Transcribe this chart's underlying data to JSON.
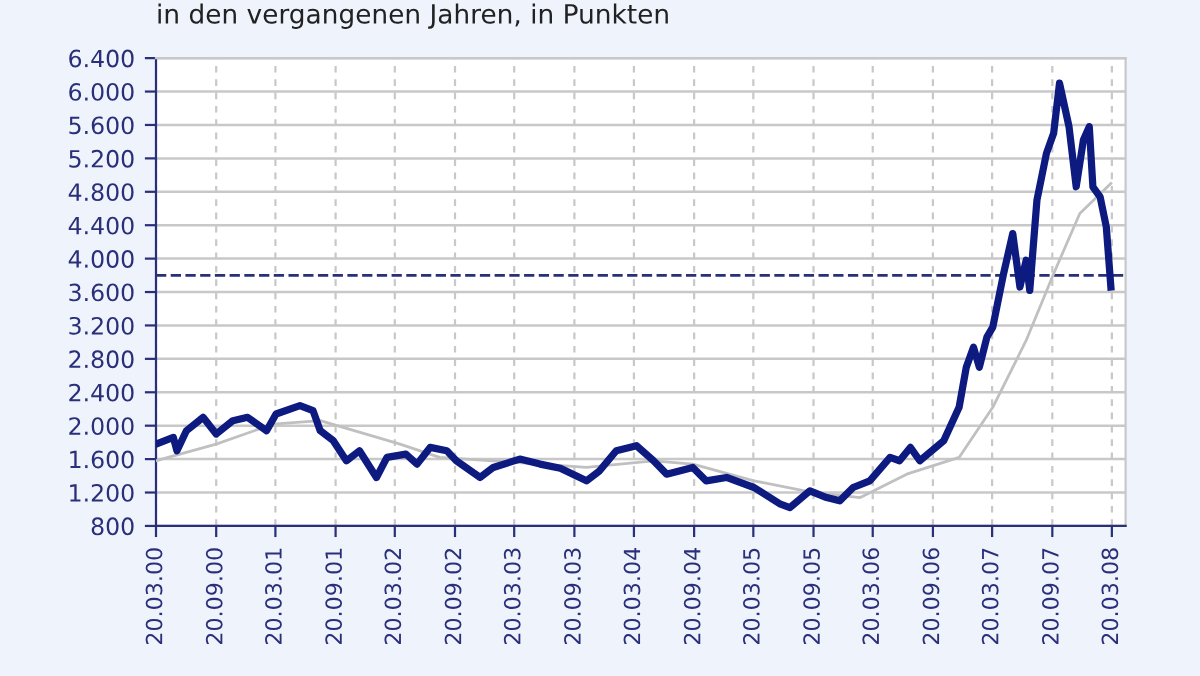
{
  "chart_data": {
    "type": "line",
    "subtitle": "in den vergangenen Jahren, in Punkten",
    "xlim": [
      "2000-03-20",
      "2008-05-01"
    ],
    "xticks": [
      {
        "value": "2000-03-20",
        "label": "20.03.00"
      },
      {
        "value": "2000-09-20",
        "label": "20.09.00"
      },
      {
        "value": "2001-03-20",
        "label": "20.03.01"
      },
      {
        "value": "2001-09-20",
        "label": "20.09.01"
      },
      {
        "value": "2002-03-20",
        "label": "20.03.02"
      },
      {
        "value": "2002-09-20",
        "label": "20.09.02"
      },
      {
        "value": "2003-03-20",
        "label": "20.03.03"
      },
      {
        "value": "2003-09-20",
        "label": "20.09.03"
      },
      {
        "value": "2004-03-20",
        "label": "20.03.04"
      },
      {
        "value": "2004-09-20",
        "label": "20.09.04"
      },
      {
        "value": "2005-03-20",
        "label": "20.03.05"
      },
      {
        "value": "2005-09-20",
        "label": "20.09.05"
      },
      {
        "value": "2006-03-20",
        "label": "20.03.06"
      },
      {
        "value": "2006-09-20",
        "label": "20.09.06"
      },
      {
        "value": "2007-03-20",
        "label": "20.03.07"
      },
      {
        "value": "2007-09-20",
        "label": "20.09.07"
      },
      {
        "value": "2008-03-20",
        "label": "20.03.08"
      }
    ],
    "ylim": [
      800,
      6400
    ],
    "yticks": [
      800,
      {
        "value": 1200,
        "label": "1.200"
      },
      {
        "value": 1600,
        "label": "1.600"
      },
      {
        "value": 2000,
        "label": "2.000"
      },
      {
        "value": 2400,
        "label": "2.400"
      },
      {
        "value": 2800,
        "label": "2.800"
      },
      {
        "value": 3200,
        "label": "3.200"
      },
      {
        "value": 3600,
        "label": "3.600"
      },
      {
        "value": 4000,
        "label": "4.000"
      },
      {
        "value": 4400,
        "label": "4.400"
      },
      {
        "value": 4800,
        "label": "4.800"
      },
      {
        "value": 5200,
        "label": "5.200"
      },
      {
        "value": 5600,
        "label": "5.600"
      },
      {
        "value": 6000,
        "label": "6.000"
      },
      {
        "value": 6400,
        "label": "6.400"
      }
    ],
    "grid": true,
    "legend": false,
    "marker": "none",
    "ref_lines": [
      {
        "axis": "y",
        "value": 3800,
        "color": "#2a2f7a",
        "line_style": "dashed"
      }
    ],
    "series": [
      {
        "color": "#c0c0c0",
        "line_style": "solid",
        "x": [
          "2000-03-20",
          "2000-09-20",
          "2001-03-14",
          "2001-08-04",
          "2002-04-05",
          "2002-08-04",
          "2003-01-15",
          "2003-10-27",
          "2004-05-19",
          "2004-09-16",
          "2005-03-22",
          "2005-09-20",
          "2006-02-10",
          "2006-07-02",
          "2006-12-09",
          "2007-03-22",
          "2007-07-02",
          "2007-09-24",
          "2007-12-13",
          "2008-03-17"
        ],
        "values": [
          1580,
          1780,
          2020,
          2060,
          1780,
          1620,
          1580,
          1500,
          1580,
          1540,
          1340,
          1200,
          1140,
          1420,
          1620,
          2220,
          3020,
          3820,
          4540,
          4900
        ]
      },
      {
        "color": "#0d1a80",
        "line_style": "solid",
        "x": [
          "2000-03-20",
          "2000-05-12",
          "2000-05-23",
          "2000-06-21",
          "2000-08-11",
          "2000-09-20",
          "2000-11-10",
          "2000-12-25",
          "2001-02-21",
          "2001-03-22",
          "2001-06-03",
          "2001-07-13",
          "2001-08-04",
          "2001-09-13",
          "2001-10-23",
          "2001-12-02",
          "2002-01-23",
          "2002-02-24",
          "2002-04-23",
          "2002-05-27",
          "2002-07-06",
          "2002-08-26",
          "2002-09-24",
          "2002-12-06",
          "2003-01-15",
          "2003-04-06",
          "2003-06-07",
          "2003-08-08",
          "2003-10-27",
          "2003-12-06",
          "2004-01-26",
          "2004-03-28",
          "2004-05-19",
          "2004-06-28",
          "2004-09-16",
          "2004-10-27",
          "2004-12-28",
          "2005-03-22",
          "2005-06-11",
          "2005-07-10",
          "2005-09-09",
          "2005-10-30",
          "2005-12-09",
          "2006-01-19",
          "2006-03-11",
          "2006-05-12",
          "2006-06-10",
          "2006-07-13",
          "2006-08-11",
          "2006-10-23",
          "2006-12-09",
          "2006-12-31",
          "2007-01-22",
          "2007-02-09",
          "2007-03-04",
          "2007-03-22",
          "2007-04-24",
          "2007-05-22",
          "2007-06-13",
          "2007-07-02",
          "2007-07-13",
          "2007-08-04",
          "2007-09-02",
          "2007-09-24",
          "2007-10-12",
          "2007-11-10",
          "2007-12-02",
          "2007-12-24",
          "2008-01-11",
          "2008-01-22",
          "2008-02-13",
          "2008-03-03",
          "2008-03-17"
        ],
        "values": [
          1780,
          1860,
          1700,
          1940,
          2100,
          1900,
          2060,
          2100,
          1940,
          2140,
          2240,
          2180,
          1940,
          1820,
          1580,
          1700,
          1380,
          1620,
          1660,
          1540,
          1740,
          1700,
          1580,
          1380,
          1500,
          1600,
          1540,
          1490,
          1340,
          1460,
          1700,
          1760,
          1580,
          1420,
          1500,
          1340,
          1380,
          1260,
          1060,
          1020,
          1220,
          1140,
          1100,
          1260,
          1340,
          1620,
          1580,
          1740,
          1580,
          1820,
          2220,
          2700,
          2940,
          2700,
          3060,
          3180,
          3820,
          4300,
          3660,
          3980,
          3620,
          4700,
          5260,
          5500,
          6100,
          5580,
          4860,
          5420,
          5580,
          4860,
          4740,
          4380,
          3660
        ]
      }
    ]
  }
}
